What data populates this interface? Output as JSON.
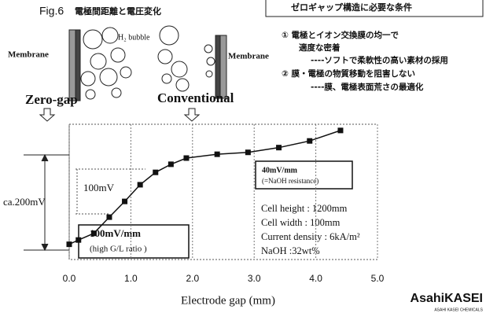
{
  "header": {
    "figure_label": "Fig.6",
    "title": "電極間距離と電圧変化"
  },
  "diagram": {
    "membrane_left": "Membrane",
    "membrane_right": "Membrane",
    "bubble_label": "H₂ bubble",
    "zero_gap": "Zero-gap",
    "conventional": "Conventional"
  },
  "conditions": {
    "title": "ゼロギャップ構造に必要な条件",
    "lines": [
      "① 電極とイオン交換膜の均一で",
      "適度な密着",
      "----ソフトで柔軟性の高い素材の採用",
      "② 膜・電極の物質移動を阻害しない",
      "----膜、電極表面荒さの最適化"
    ]
  },
  "logo": {
    "name": "AsahiKASEI",
    "sub": "ASAHI KASEI CHEMICALS"
  },
  "chart_data": {
    "type": "line",
    "x_label": "Electrode gap (mm)",
    "color": "#111111",
    "x": [
      0.0,
      0.15,
      0.4,
      0.65,
      0.9,
      1.15,
      1.4,
      1.65,
      1.9,
      2.4,
      2.9,
      3.4,
      3.9,
      4.4
    ],
    "values": [
      12,
      21,
      35,
      69,
      102,
      137,
      163,
      180,
      193,
      201,
      205,
      215,
      229,
      251
    ],
    "xlim": [
      0,
      5
    ],
    "ylim": [
      -20,
      264
    ],
    "xticks": [
      {
        "value": 0,
        "label": "0.0"
      },
      {
        "value": 1,
        "label": "1.0"
      },
      {
        "value": 2,
        "label": "2.0"
      },
      {
        "value": 3,
        "label": "3.0"
      },
      {
        "value": 4,
        "label": "4.0"
      },
      {
        "value": 5,
        "label": "5.0"
      }
    ],
    "grid": true,
    "annotations": [
      "ca.200mV",
      "100mV",
      "100mV/mm",
      "(high G/L ratio )",
      "40mV/mm",
      "(=NaOH resistance)",
      "Cell height : 1200mm",
      "Cell width : 100mm",
      "Current density : 6kA/m²",
      "NaOH :32wt%"
    ]
  }
}
